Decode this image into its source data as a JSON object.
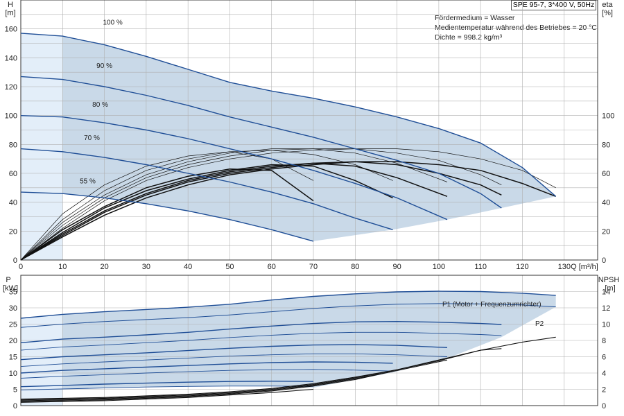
{
  "header": {
    "model_box": "SPE 95-7, 3*400 V, 50Hz",
    "info_lines": [
      "Fördermedium = Wasser",
      "Medientemperatur während des Betriebes = 20 °C",
      "Dichte = 998.2 kg/m³"
    ]
  },
  "colors": {
    "accent": "#1f4e96",
    "fill": "#c9d9e8",
    "fill_light": "#e3eef9",
    "grid": "#b0b0b0",
    "curve_black": "#111111"
  },
  "chart_data": [
    {
      "type": "line",
      "title": "",
      "x_axis": {
        "label": "Q [m³/h]",
        "ticks": [
          0,
          10,
          20,
          30,
          40,
          50,
          60,
          70,
          80,
          90,
          100,
          110,
          120,
          130
        ],
        "range": [
          0,
          138
        ]
      },
      "y_left": {
        "label_top": "H",
        "label_unit": "[m]",
        "ticks": [
          0,
          20,
          40,
          60,
          80,
          100,
          120,
          140,
          160
        ],
        "range": [
          0,
          180
        ]
      },
      "y_right": {
        "label_top": "eta",
        "label_unit": "[%]",
        "ticks": [
          0,
          20,
          40,
          60,
          80,
          100
        ],
        "range": [
          0,
          180
        ]
      },
      "grid": true,
      "head_curves": [
        {
          "name": "100 %",
          "x": [
            0,
            10,
            20,
            30,
            40,
            50,
            60,
            70,
            80,
            90,
            100,
            110,
            120,
            128
          ],
          "y": [
            157,
            155,
            149,
            141,
            132,
            123,
            117,
            112,
            106,
            99,
            91,
            81,
            64,
            44
          ]
        },
        {
          "name": "90 %",
          "x": [
            0,
            10,
            20,
            30,
            40,
            50,
            60,
            70,
            80,
            90,
            100,
            110,
            115
          ],
          "y": [
            127,
            125,
            120,
            114,
            107,
            99,
            92,
            85,
            77,
            69,
            60,
            46,
            36
          ]
        },
        {
          "name": "80 %",
          "x": [
            0,
            10,
            20,
            30,
            40,
            50,
            60,
            70,
            80,
            90,
            102
          ],
          "y": [
            100,
            99,
            95,
            90,
            84,
            77,
            70,
            62,
            53,
            43,
            28
          ]
        },
        {
          "name": "70 %",
          "x": [
            0,
            10,
            20,
            30,
            40,
            50,
            60,
            70,
            80,
            89
          ],
          "y": [
            77,
            75,
            71,
            66,
            60,
            54,
            47,
            39,
            29,
            21
          ]
        },
        {
          "name": "55 %",
          "x": [
            0,
            10,
            20,
            30,
            40,
            50,
            60,
            70
          ],
          "y": [
            47,
            46,
            43,
            39,
            34,
            28,
            21,
            13
          ]
        }
      ],
      "efficiency_curves_thick": [
        {
          "x": [
            0,
            10,
            20,
            30,
            40,
            50,
            60,
            70
          ],
          "y": [
            0,
            21,
            37,
            50,
            58,
            63,
            62,
            41
          ]
        },
        {
          "x": [
            0,
            10,
            20,
            30,
            40,
            50,
            60,
            70,
            80,
            89
          ],
          "y": [
            0,
            19,
            36,
            48,
            56,
            62,
            66,
            65,
            55,
            43
          ]
        },
        {
          "x": [
            0,
            10,
            20,
            30,
            40,
            50,
            60,
            70,
            80,
            90,
            102
          ],
          "y": [
            0,
            18,
            34,
            46,
            55,
            61,
            65,
            67,
            65,
            57,
            44
          ]
        },
        {
          "x": [
            0,
            10,
            20,
            30,
            40,
            50,
            60,
            70,
            80,
            90,
            100,
            110,
            115
          ],
          "y": [
            0,
            17,
            33,
            45,
            54,
            60,
            64,
            67,
            68,
            66,
            60,
            52,
            45
          ]
        },
        {
          "x": [
            0,
            10,
            20,
            30,
            40,
            50,
            60,
            70,
            80,
            90,
            100,
            110,
            120,
            128
          ],
          "y": [
            0,
            16,
            31,
            43,
            52,
            59,
            63,
            66,
            68,
            68,
            66,
            62,
            53,
            44
          ]
        }
      ],
      "efficiency_curves_thin": [
        {
          "x": [
            0,
            10,
            20,
            30,
            40,
            50,
            60,
            70
          ],
          "y": [
            0,
            32,
            52,
            65,
            72,
            75,
            70,
            55
          ]
        },
        {
          "x": [
            0,
            10,
            20,
            30,
            40,
            50,
            60,
            70,
            80,
            89
          ],
          "y": [
            0,
            28,
            48,
            62,
            70,
            75,
            76,
            73,
            66,
            55
          ]
        },
        {
          "x": [
            0,
            10,
            20,
            30,
            40,
            50,
            60,
            70,
            80,
            90,
            102
          ],
          "y": [
            0,
            26,
            45,
            59,
            68,
            74,
            77,
            77,
            74,
            67,
            54
          ]
        },
        {
          "x": [
            0,
            10,
            20,
            30,
            40,
            50,
            60,
            70,
            80,
            90,
            100,
            110,
            115
          ],
          "y": [
            0,
            24,
            43,
            57,
            66,
            72,
            76,
            77,
            77,
            74,
            69,
            59,
            52
          ]
        },
        {
          "x": [
            0,
            10,
            20,
            30,
            40,
            50,
            60,
            70,
            80,
            90,
            100,
            110,
            120,
            128
          ],
          "y": [
            0,
            22,
            41,
            55,
            64,
            70,
            74,
            76,
            77,
            77,
            75,
            70,
            62,
            50
          ]
        }
      ]
    },
    {
      "type": "line",
      "title": "",
      "x_axis": {
        "range": [
          0,
          138
        ]
      },
      "y_left": {
        "label_top": "P",
        "label_unit": "[kW]",
        "ticks": [
          0,
          5,
          10,
          15,
          20,
          25,
          30,
          35
        ],
        "range": [
          0,
          40
        ]
      },
      "y_right": {
        "label_top": "NPSH",
        "label_unit": "[m]",
        "ticks": [
          0,
          2,
          4,
          6,
          8,
          10,
          12,
          14
        ],
        "range": [
          0,
          16
        ]
      },
      "grid": true,
      "labels": {
        "p1": "P1 (Motor + Frequenzumrichter)",
        "p2": "P2"
      },
      "power_p1_max": {
        "x": [
          0,
          10,
          20,
          30,
          40,
          50,
          60,
          70,
          80,
          90,
          100,
          110,
          120,
          128
        ],
        "y": [
          26.8,
          28.0,
          28.8,
          29.5,
          30.2,
          31.1,
          32.4,
          33.5,
          34.3,
          34.9,
          35.1,
          35.0,
          34.5,
          33.8
        ]
      },
      "power_p2_max": {
        "x": [
          0,
          10,
          20,
          30,
          40,
          50,
          60,
          70,
          80,
          90,
          100,
          110,
          120,
          128
        ],
        "y": [
          24.0,
          25.0,
          25.8,
          26.4,
          27.0,
          27.8,
          28.8,
          29.8,
          30.6,
          31.1,
          31.3,
          31.2,
          30.9,
          30.3
        ]
      },
      "power_p1_family": [
        {
          "x": [
            0,
            10,
            20,
            30,
            40,
            50,
            60,
            70,
            80,
            90,
            100,
            110,
            115
          ],
          "y": [
            19.3,
            20.4,
            21.0,
            21.7,
            22.5,
            23.5,
            24.4,
            25.2,
            25.7,
            25.8,
            25.6,
            25.2,
            24.9
          ]
        },
        {
          "x": [
            0,
            10,
            20,
            30,
            40,
            50,
            60,
            70,
            80,
            90,
            102
          ],
          "y": [
            14.1,
            15.0,
            15.6,
            16.2,
            16.9,
            17.6,
            18.2,
            18.6,
            18.7,
            18.5,
            17.8
          ]
        },
        {
          "x": [
            0,
            10,
            20,
            30,
            40,
            50,
            60,
            70,
            80,
            89
          ],
          "y": [
            10.0,
            10.8,
            11.3,
            11.8,
            12.3,
            12.8,
            13.2,
            13.4,
            13.3,
            13.0
          ]
        },
        {
          "x": [
            0,
            10,
            20,
            30,
            40,
            50,
            60,
            70
          ],
          "y": [
            5.8,
            6.2,
            6.6,
            6.9,
            7.2,
            7.4,
            7.5,
            7.4
          ]
        }
      ],
      "power_p2_family": [
        {
          "x": [
            0,
            10,
            20,
            30,
            40,
            50,
            60,
            70,
            80,
            90,
            100,
            110,
            115
          ],
          "y": [
            17.0,
            18.0,
            18.6,
            19.3,
            20.0,
            20.9,
            21.6,
            22.2,
            22.5,
            22.5,
            22.2,
            21.8,
            21.5
          ]
        },
        {
          "x": [
            0,
            10,
            20,
            30,
            40,
            50,
            60,
            70,
            80,
            90,
            102
          ],
          "y": [
            12.0,
            12.8,
            13.4,
            14.0,
            14.6,
            15.2,
            15.6,
            15.9,
            15.9,
            15.6,
            15.0
          ]
        },
        {
          "x": [
            0,
            10,
            20,
            30,
            40,
            50,
            60,
            70,
            80,
            89
          ],
          "y": [
            8.4,
            9.0,
            9.5,
            10.0,
            10.4,
            10.8,
            11.0,
            11.1,
            10.9,
            10.6
          ]
        },
        {
          "x": [
            0,
            10,
            20,
            30,
            40,
            50,
            60,
            70
          ],
          "y": [
            4.8,
            5.1,
            5.4,
            5.7,
            5.9,
            6.0,
            6.0,
            5.9
          ]
        }
      ],
      "npsh_curves": [
        {
          "x": [
            0,
            10,
            20,
            30,
            40,
            50,
            60,
            70
          ],
          "y": [
            0.4,
            0.5,
            0.6,
            0.8,
            1.0,
            1.3,
            1.6,
            2.0
          ]
        },
        {
          "x": [
            0,
            10,
            20,
            30,
            40,
            50,
            60,
            70,
            80,
            89
          ],
          "y": [
            0.5,
            0.6,
            0.7,
            0.9,
            1.1,
            1.4,
            1.8,
            2.4,
            3.2,
            4.2
          ]
        },
        {
          "x": [
            0,
            10,
            20,
            30,
            40,
            50,
            60,
            70,
            80,
            90,
            102
          ],
          "y": [
            0.6,
            0.7,
            0.8,
            1.0,
            1.2,
            1.5,
            1.9,
            2.5,
            3.3,
            4.3,
            5.6
          ]
        },
        {
          "x": [
            0,
            10,
            20,
            30,
            40,
            50,
            60,
            70,
            80,
            90,
            100,
            110,
            115
          ],
          "y": [
            0.7,
            0.8,
            0.9,
            1.1,
            1.3,
            1.6,
            2.0,
            2.6,
            3.4,
            4.4,
            5.6,
            6.8,
            7.0
          ]
        },
        {
          "x": [
            0,
            10,
            20,
            30,
            40,
            50,
            60,
            70,
            80,
            90,
            100,
            110,
            120,
            128
          ],
          "y": [
            0.8,
            0.9,
            1.0,
            1.2,
            1.4,
            1.7,
            2.1,
            2.7,
            3.5,
            4.4,
            5.5,
            6.8,
            7.8,
            8.4
          ]
        }
      ]
    }
  ]
}
